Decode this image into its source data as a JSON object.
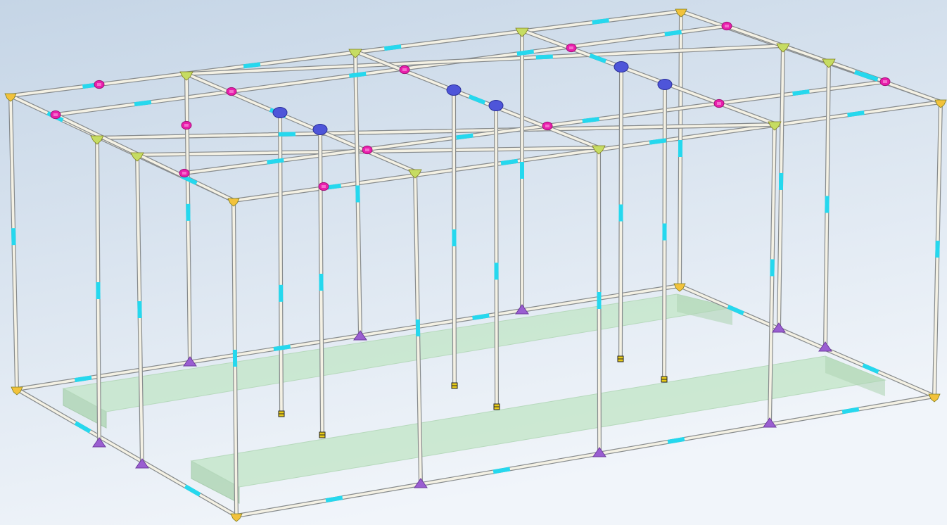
{
  "colors": {
    "background_top": "#c5d5e6",
    "background_bottom": "#f1f5fa",
    "pipe": "#f4f1e4",
    "pipe_outline": "#878b8d",
    "coupler": "#25d8ee",
    "corner_connector": "#f2c23b",
    "ridge_connector": "#c6dc62",
    "tee_connector": "#e91eac",
    "hanger_connector": "#4e55d9",
    "foot_connector": "#9a5ed1",
    "weight_tag": "#e8cb19",
    "bench_top": "#c5e6cb",
    "bench_side": "#b0d6b6"
  },
  "scene": {
    "description_icons": {
      "corner": "corner-connector-icon",
      "ridge": "ridge-connector-icon",
      "tee": "tee-connector-icon",
      "hanger": "hanger-connector-icon",
      "foot": "foot-connector-icon",
      "weight": "weight-tag-icon"
    }
  }
}
